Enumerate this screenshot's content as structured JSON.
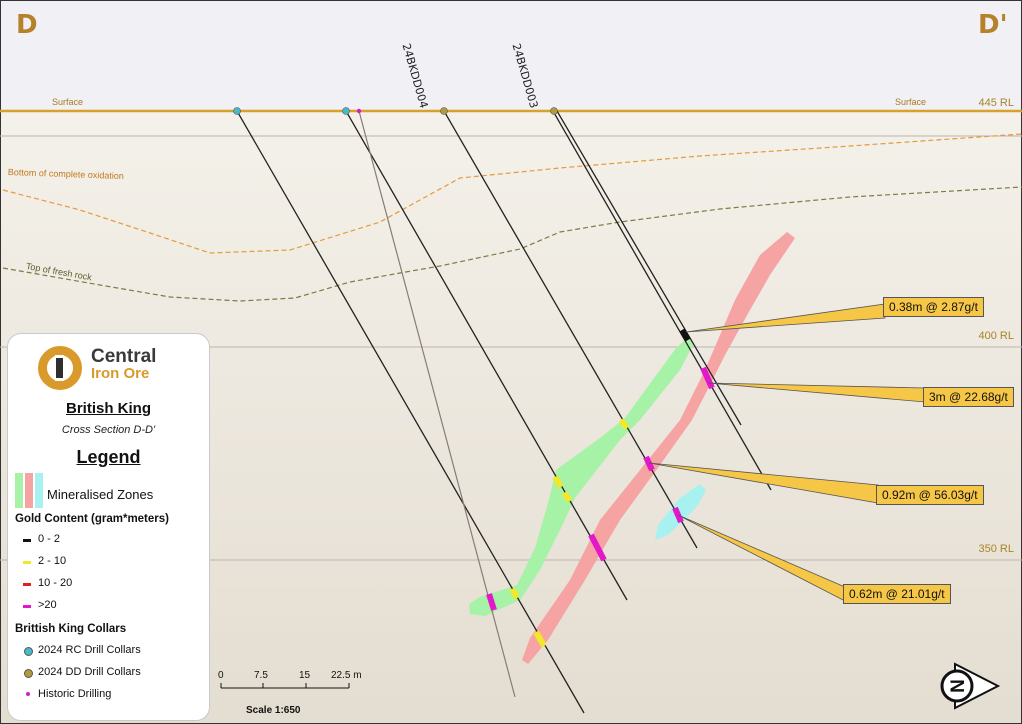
{
  "section": {
    "left_label": "D",
    "right_label": "D'",
    "surface_label": "Surface",
    "oxidation_label": "Bottom of complete oxidation",
    "fresh_rock_label": "Top of fresh rock",
    "rl_labels": [
      "445 RL",
      "400 RL",
      "350 RL"
    ]
  },
  "drillholes": [
    "24BKDD004",
    "24BKDD003"
  ],
  "intercepts": [
    "0.38m @ 2.87g/t",
    "3m @ 22.68g/t",
    "0.92m @ 56.03g/t",
    "0.62m @ 21.01g/t"
  ],
  "legend": {
    "brand_line1": "Central",
    "brand_line2": "Iron Ore",
    "title": "British King",
    "subtitle": "Cross Section D-D'",
    "heading": "Legend",
    "mineralised_zones": "Mineralised Zones",
    "gold_heading": "Gold Content (gram*meters)",
    "gold_items": [
      "0 - 2",
      "2 - 10",
      "10 - 20",
      ">20"
    ],
    "collars_heading": "Brittish King Collars",
    "collar_items": [
      "2024 RC Drill Collars",
      "2024 DD Drill Collars",
      "Historic Drilling"
    ]
  },
  "scale": {
    "ticks": [
      "0",
      "7.5",
      "15",
      "22.5 m"
    ],
    "label": "Scale 1:650"
  },
  "north_label": "N",
  "colors": {
    "surface": "#d8a12b",
    "oxidation": "#e59a3c",
    "fresh_rock": "#7d7a45",
    "zone_green": "#a6f2a6",
    "zone_pink": "#f6a3a3",
    "zone_cyan": "#a8f1f1",
    "gold_0_2": "#111111",
    "gold_2_10": "#f2e82a",
    "gold_10_20": "#e01f1f",
    "gold_gt20": "#e319c9",
    "callout": "#f6c646",
    "rc_collar": "#48b9c7",
    "dd_collar": "#b39a3e",
    "historic": "#d21ec8"
  }
}
